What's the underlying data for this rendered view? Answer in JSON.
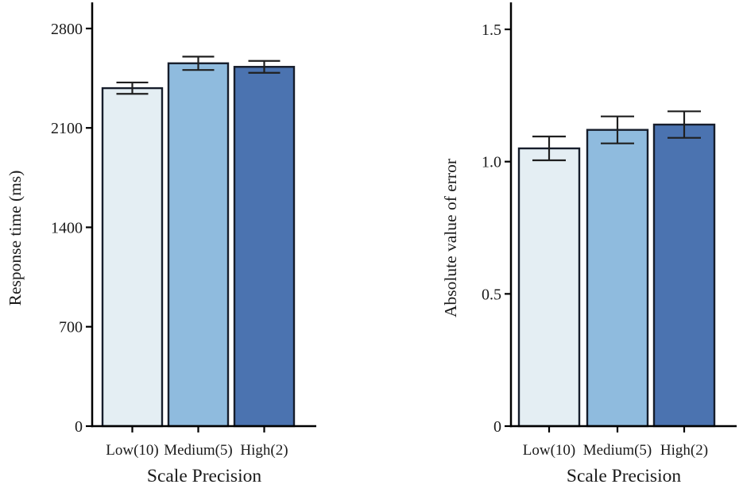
{
  "figure": {
    "background": "#ffffff",
    "description": "Two-panel bar chart figure comparing scale precision conditions"
  },
  "chart_data": [
    {
      "type": "bar",
      "title": "",
      "categories": [
        "Low(10)",
        "Medium(5)",
        "High(2)"
      ],
      "values": [
        2380,
        2555,
        2530
      ],
      "errors": [
        40,
        47,
        42
      ],
      "xlabel": "Scale Precision",
      "ylabel": "Response time (ms)",
      "yticks": [
        0,
        700,
        1400,
        2100,
        2800
      ],
      "ytick_labels": [
        "0",
        "700",
        "1400",
        "2100",
        "2800"
      ],
      "ylim": [
        0,
        2984
      ],
      "grid": false,
      "legend": "none",
      "bar_fills": [
        "#e4eef3",
        "#8fbbde",
        "#4b73b0"
      ],
      "bar_stroke": "#161d2b",
      "error_color": "#1f1f1f",
      "axis_color": "#000000",
      "text_color": "#1a1a1a"
    },
    {
      "type": "bar",
      "title": "",
      "categories": [
        "Low(10)",
        "Medium(5)",
        "High(2)"
      ],
      "values": [
        1.05,
        1.12,
        1.14
      ],
      "errors": [
        0.045,
        0.051,
        0.05
      ],
      "xlabel": "Scale Precision",
      "ylabel": "Absolute value of error",
      "yticks": [
        0,
        0.5,
        1.0,
        1.5
      ],
      "ytick_labels": [
        "0",
        "0.5",
        "1.0",
        "1.5"
      ],
      "ylim": [
        0,
        1.602
      ],
      "grid": false,
      "legend": "none",
      "bar_fills": [
        "#e4eef3",
        "#8fbbde",
        "#4b73b0"
      ],
      "bar_stroke": "#161d2b",
      "error_color": "#1f1f1f",
      "axis_color": "#000000",
      "text_color": "#1a1a1a"
    }
  ]
}
